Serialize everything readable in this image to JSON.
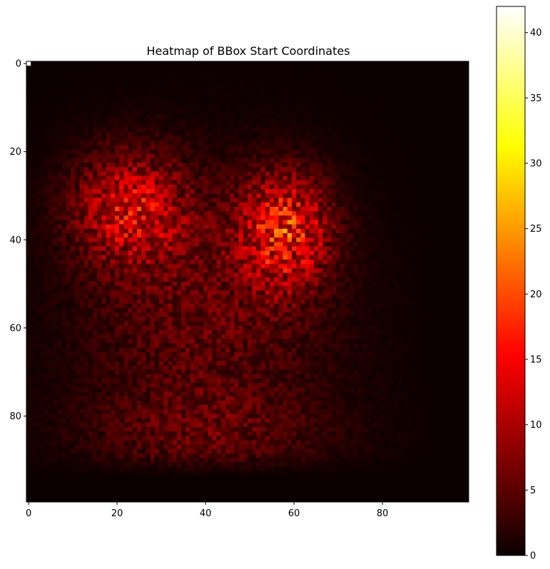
{
  "chart_data": {
    "type": "heatmap",
    "title": "Heatmap of BBox Start Coordinates",
    "xlabel": "",
    "ylabel": "",
    "grid_size": [
      100,
      100
    ],
    "xlim": [
      0,
      99
    ],
    "ylim": [
      0,
      99
    ],
    "y_axis_inverted": true,
    "x_ticks": [
      0,
      20,
      40,
      60,
      80
    ],
    "y_ticks": [
      0,
      20,
      40,
      60,
      80
    ],
    "colormap": "hot",
    "colorbar": {
      "min": 0,
      "max": 42,
      "ticks": [
        0,
        5,
        10,
        15,
        20,
        25,
        30,
        35,
        40
      ],
      "placement": "right"
    },
    "clusters": [
      {
        "cx": 23,
        "cy": 33,
        "sx": 9,
        "sy": 9,
        "amp": 11
      },
      {
        "cx": 58,
        "cy": 38,
        "sx": 7,
        "sy": 9,
        "amp": 14
      },
      {
        "cx": 40,
        "cy": 58,
        "sx": 20,
        "sy": 22,
        "amp": 5
      },
      {
        "cx": 40,
        "cy": 84,
        "sx": 20,
        "sy": 7,
        "amp": 3
      }
    ],
    "support": {
      "x": [
        0,
        92
      ],
      "y": [
        0,
        93
      ]
    },
    "notable_cells": [
      {
        "x": 0,
        "y": 0,
        "value": 42
      },
      {
        "x": 59,
        "y": 40,
        "value": 22
      },
      {
        "x": 61,
        "y": 38,
        "value": 20
      }
    ],
    "grid": false
  }
}
